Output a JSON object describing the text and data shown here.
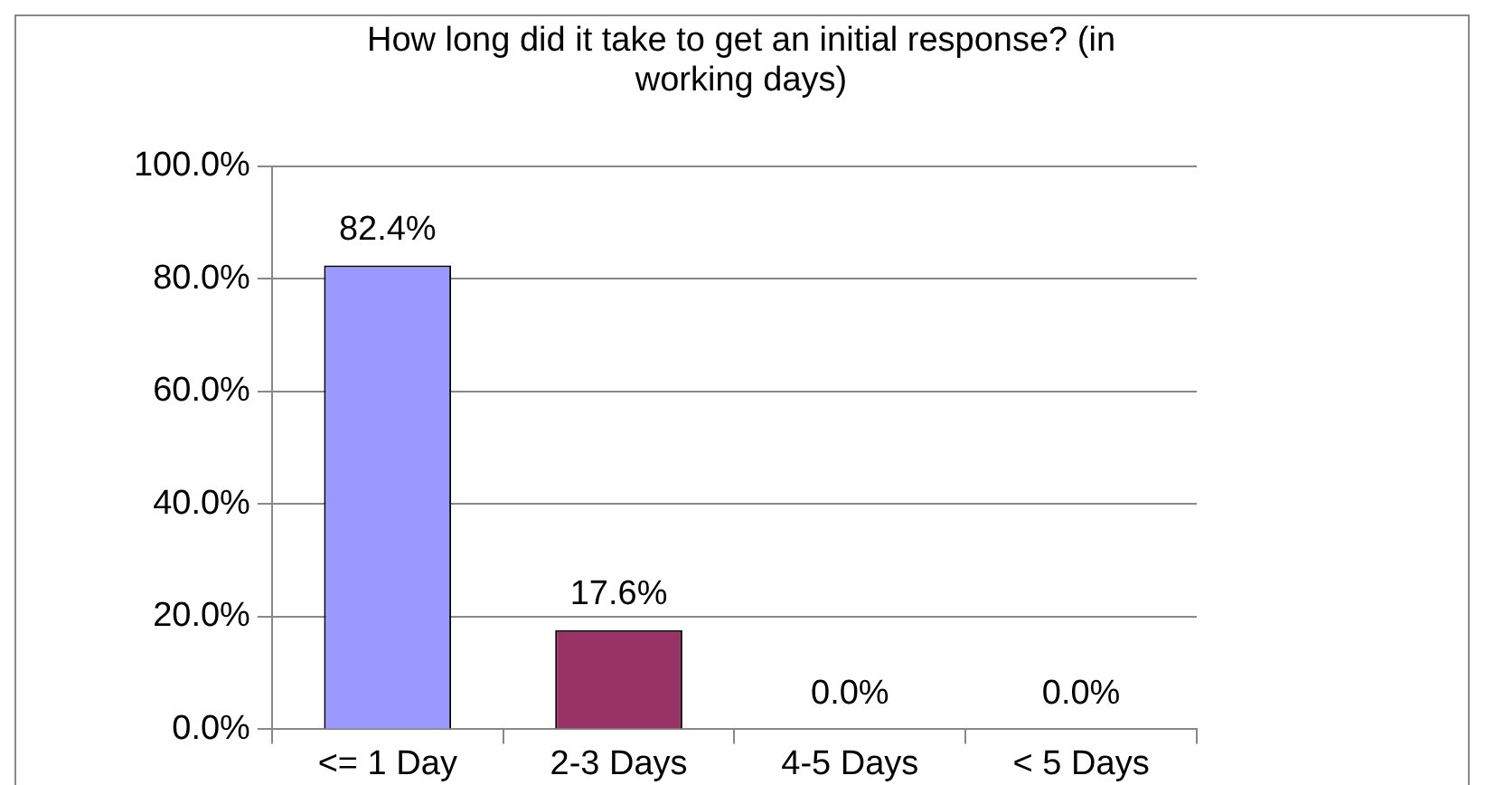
{
  "chart_data": {
    "type": "bar",
    "title": "How long did it take to get an initial response? (in working days)",
    "categories": [
      "<= 1 Day",
      "2-3 Days",
      "4-5 Days",
      "< 5 Days"
    ],
    "values": [
      82.4,
      17.6,
      0,
      0
    ],
    "colors": [
      "#9999ff",
      "#993366",
      "#9999ff",
      "#9999ff"
    ],
    "value_labels": [
      "82.4%",
      "17.6%",
      "0.0%",
      "0.0%"
    ],
    "ylim": [
      0,
      100
    ],
    "yticks": [
      {
        "value": 0,
        "label": "0.0%"
      },
      {
        "value": 20,
        "label": "20.0%"
      },
      {
        "value": 40,
        "label": "40.0%"
      },
      {
        "value": 60,
        "label": "60.0%"
      },
      {
        "value": 80,
        "label": "80.0%"
      },
      {
        "value": 100,
        "label": "100.0%"
      }
    ],
    "grid": "y",
    "legend": false
  }
}
